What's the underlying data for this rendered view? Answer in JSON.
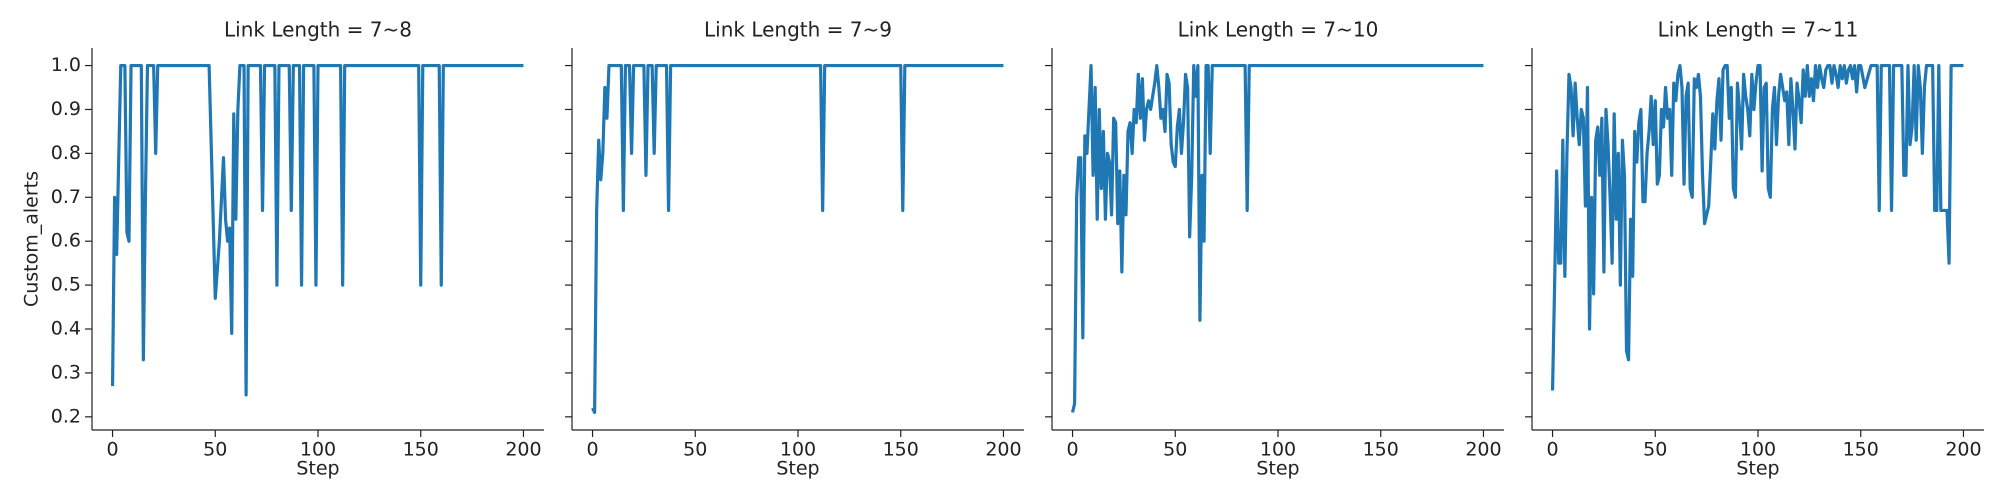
{
  "chart_data": [
    {
      "type": "line",
      "title": "Link Length = 7~8",
      "xlabel": "Step",
      "ylabel": "Custom_alerts",
      "ytick_labels": true,
      "xlim": [
        -10,
        210
      ],
      "ylim": [
        0.17,
        1.04
      ],
      "xticks": [
        0,
        50,
        100,
        150,
        200
      ],
      "yticks": [
        0.2,
        0.3,
        0.4,
        0.5,
        0.6,
        0.7,
        0.8,
        0.9,
        {
          "value": 1,
          "label": "1.0"
        }
      ],
      "x": [
        0,
        1,
        2,
        4,
        6,
        7,
        8,
        9,
        14,
        15,
        16,
        17,
        20,
        21,
        22,
        47,
        50,
        52,
        54,
        55,
        56,
        57,
        58,
        59,
        60,
        61,
        62,
        64,
        65,
        66,
        72,
        73,
        74,
        79,
        80,
        81,
        86,
        87,
        88,
        91,
        92,
        93,
        98,
        99,
        100,
        111,
        112,
        113,
        149,
        150,
        151,
        159,
        160,
        161,
        200
      ],
      "series": [
        {
          "color": "#1f77b4",
          "values": [
            0.27,
            0.7,
            0.57,
            1,
            1,
            0.62,
            0.6,
            1,
            1,
            0.33,
            0.7,
            1,
            1,
            0.8,
            1,
            1,
            0.47,
            0.6,
            0.79,
            0.65,
            0.6,
            0.63,
            0.39,
            0.89,
            0.65,
            0.9,
            1,
            1,
            0.25,
            1,
            1,
            0.67,
            1,
            1,
            0.5,
            1,
            1,
            0.67,
            1,
            1,
            0.5,
            1,
            1,
            0.5,
            1,
            1,
            0.5,
            1,
            1,
            0.5,
            1,
            1,
            0.5,
            1,
            1
          ]
        }
      ]
    },
    {
      "type": "line",
      "title": "Link Length = 7~9",
      "xlabel": "Step",
      "ytick_labels": false,
      "xlim": [
        -10,
        210
      ],
      "ylim": [
        0.17,
        1.04
      ],
      "xticks": [
        0,
        50,
        100,
        150,
        200
      ],
      "yticks": [
        0.2,
        0.3,
        0.4,
        0.5,
        0.6,
        0.7,
        0.8,
        0.9,
        1
      ],
      "x": [
        0,
        1,
        2,
        3,
        4,
        5,
        6,
        7,
        8,
        14,
        15,
        16,
        18,
        19,
        20,
        25,
        26,
        27,
        29,
        30,
        31,
        36,
        37,
        38,
        111,
        112,
        113,
        150,
        151,
        152,
        200
      ],
      "series": [
        {
          "color": "#1f77b4",
          "values": [
            0.22,
            0.21,
            0.67,
            0.83,
            0.74,
            0.8,
            0.95,
            0.88,
            1,
            1,
            0.67,
            1,
            1,
            0.8,
            1,
            1,
            0.75,
            1,
            1,
            0.8,
            1,
            1,
            0.67,
            1,
            1,
            0.67,
            1,
            1,
            0.67,
            1,
            1
          ]
        }
      ]
    },
    {
      "type": "line",
      "title": "Link Length = 7~10",
      "xlabel": "Step",
      "ytick_labels": false,
      "xlim": [
        -10,
        210
      ],
      "ylim": [
        0.17,
        1.04
      ],
      "xticks": [
        0,
        50,
        100,
        150,
        200
      ],
      "yticks": [
        0.2,
        0.3,
        0.4,
        0.5,
        0.6,
        0.7,
        0.8,
        0.9,
        1
      ],
      "x": [
        0,
        1,
        2,
        3,
        4,
        5,
        6,
        7,
        8,
        9,
        10,
        11,
        12,
        13,
        14,
        15,
        16,
        17,
        18,
        19,
        20,
        21,
        22,
        23,
        24,
        25,
        26,
        27,
        28,
        29,
        30,
        31,
        32,
        33,
        34,
        35,
        36,
        37,
        38,
        39,
        40,
        41,
        42,
        43,
        44,
        45,
        46,
        47,
        48,
        49,
        50,
        51,
        52,
        53,
        54,
        55,
        56,
        57,
        58,
        59,
        60,
        61,
        62,
        63,
        64,
        65,
        66,
        67,
        68,
        84,
        85,
        86,
        200
      ],
      "series": [
        {
          "color": "#1f77b4",
          "values": [
            0.21,
            0.23,
            0.7,
            0.79,
            0.79,
            0.38,
            0.84,
            0.8,
            0.9,
            1,
            0.75,
            0.95,
            0.65,
            0.9,
            0.72,
            0.85,
            0.65,
            0.8,
            0.78,
            0.66,
            0.88,
            0.87,
            0.64,
            0.76,
            0.53,
            0.75,
            0.66,
            0.85,
            0.87,
            0.8,
            0.9,
            0.87,
            0.98,
            0.88,
            0.97,
            0.83,
            0.9,
            0.92,
            0.9,
            0.93,
            0.96,
            1,
            0.95,
            0.88,
            0.9,
            0.85,
            0.98,
            0.96,
            0.82,
            0.78,
            0.77,
            0.86,
            0.9,
            0.8,
            0.87,
            0.98,
            0.95,
            0.61,
            0.75,
            1,
            0.93,
            1,
            0.42,
            0.75,
            0.6,
            1,
            1,
            0.8,
            1,
            1,
            0.67,
            1,
            1
          ]
        }
      ]
    },
    {
      "type": "line",
      "title": "Link Length = 7~11",
      "xlabel": "Step",
      "ytick_labels": false,
      "xlim": [
        -10,
        210
      ],
      "ylim": [
        0.17,
        1.04
      ],
      "xticks": [
        0,
        50,
        100,
        150,
        200
      ],
      "yticks": [
        0.2,
        0.3,
        0.4,
        0.5,
        0.6,
        0.7,
        0.8,
        0.9,
        1
      ],
      "x": [
        0,
        1,
        2,
        3,
        4,
        5,
        6,
        7,
        8,
        9,
        10,
        11,
        12,
        13,
        14,
        15,
        16,
        17,
        18,
        19,
        20,
        21,
        22,
        23,
        24,
        25,
        26,
        27,
        28,
        29,
        30,
        31,
        32,
        33,
        34,
        35,
        36,
        37,
        38,
        39,
        40,
        41,
        42,
        43,
        44,
        45,
        46,
        47,
        48,
        49,
        50,
        51,
        52,
        53,
        54,
        55,
        56,
        57,
        58,
        59,
        60,
        61,
        62,
        63,
        64,
        65,
        66,
        67,
        68,
        69,
        70,
        71,
        72,
        73,
        74,
        75,
        76,
        77,
        78,
        79,
        80,
        81,
        82,
        83,
        84,
        85,
        86,
        87,
        88,
        89,
        90,
        91,
        92,
        93,
        94,
        95,
        96,
        97,
        98,
        99,
        100,
        101,
        102,
        103,
        104,
        105,
        106,
        107,
        108,
        109,
        110,
        111,
        112,
        113,
        114,
        115,
        116,
        117,
        118,
        119,
        120,
        121,
        122,
        123,
        124,
        125,
        126,
        127,
        128,
        129,
        130,
        131,
        132,
        133,
        134,
        135,
        136,
        137,
        138,
        139,
        140,
        141,
        142,
        143,
        144,
        145,
        146,
        147,
        148,
        149,
        150,
        152,
        155,
        158,
        159,
        160,
        164,
        165,
        166,
        170,
        171,
        172,
        173,
        174,
        175,
        176,
        177,
        178,
        179,
        180,
        181,
        182,
        185,
        186,
        187,
        188,
        189,
        190,
        191,
        192,
        193,
        194,
        200
      ],
      "series": [
        {
          "color": "#1f77b4",
          "values": [
            0.26,
            0.5,
            0.76,
            0.55,
            0.55,
            0.83,
            0.52,
            0.8,
            0.98,
            0.95,
            0.84,
            0.96,
            0.88,
            0.82,
            0.9,
            0.88,
            0.68,
            0.95,
            0.4,
            0.7,
            0.48,
            0.83,
            0.86,
            0.75,
            0.88,
            0.53,
            0.9,
            0.82,
            0.7,
            0.55,
            0.89,
            0.65,
            0.8,
            0.5,
            0.83,
            0.75,
            0.35,
            0.33,
            0.65,
            0.52,
            0.85,
            0.78,
            0.87,
            0.9,
            0.69,
            0.69,
            0.8,
            0.85,
            0.93,
            0.82,
            0.92,
            0.73,
            0.75,
            0.9,
            0.86,
            0.95,
            0.88,
            0.9,
            0.75,
            0.96,
            0.92,
            0.98,
            1,
            0.95,
            0.73,
            0.93,
            0.96,
            0.72,
            0.7,
            0.97,
            0.95,
            0.98,
            0.93,
            0.75,
            0.64,
            0.66,
            0.68,
            0.78,
            0.89,
            0.81,
            0.92,
            0.97,
            0.83,
            0.99,
            1,
            1,
            0.88,
            0.95,
            0.72,
            0.7,
            0.96,
            0.9,
            0.81,
            0.98,
            0.93,
            0.9,
            0.84,
            0.98,
            0.9,
            0.96,
            1,
            1,
            0.76,
            0.95,
            0.96,
            0.72,
            0.7,
            0.9,
            0.95,
            0.82,
            0.93,
            0.98,
            0.95,
            0.92,
            0.94,
            0.82,
            0.97,
            0.9,
            0.81,
            0.96,
            0.92,
            0.87,
            0.99,
            0.93,
            1,
            0.93,
            0.97,
            0.92,
            1,
            0.95,
            1,
            0.97,
            0.95,
            0.99,
            1,
            1,
            0.96,
            1,
            0.98,
            0.95,
            1,
            0.97,
            1,
            0.96,
            0.99,
            1,
            0.97,
            1,
            0.94,
            1,
            1,
            0.95,
            1,
            1,
            0.67,
            1,
            1,
            0.67,
            1,
            1,
            0.75,
            0.75,
            1,
            0.82,
            0.86,
            1,
            0.83,
            1,
            0.95,
            0.8,
            0.95,
            1,
            1,
            0.67,
            0.67,
            1,
            0.67,
            0.67,
            0.67,
            0.67,
            0.55,
            1,
            1
          ]
        }
      ]
    }
  ]
}
